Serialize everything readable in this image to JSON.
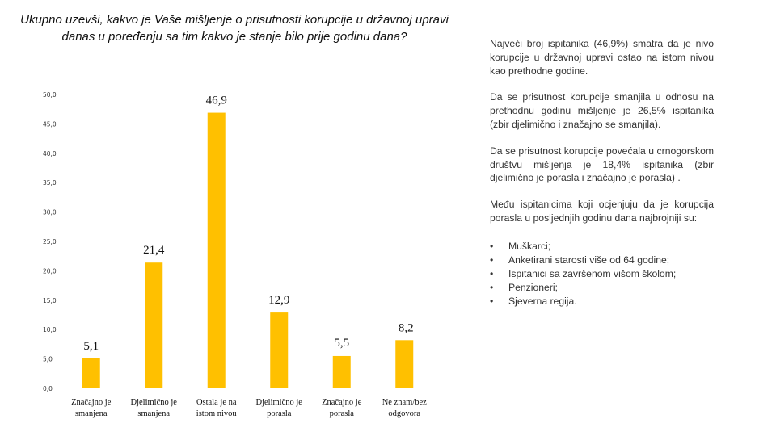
{
  "chart_data": {
    "type": "bar",
    "title": "Ukupno uzevši, kakvo je Vaše mišljenje o prisutnosti korupcije u državnoj upravi danas u poređenju sa tim kakvo je stanje bilo prije godinu dana?",
    "categories": [
      [
        "Značajno je",
        "smanjena"
      ],
      [
        "Djelimično je",
        "smanjena"
      ],
      [
        "Ostala je na",
        "istom nivou"
      ],
      [
        "Djelimično je",
        "porasla"
      ],
      [
        "Značajno je",
        "porasla"
      ],
      [
        "Ne znam/bez",
        "odgovora"
      ]
    ],
    "values": [
      5.1,
      21.4,
      46.9,
      12.9,
      5.5,
      8.2
    ],
    "value_labels": [
      "5,1",
      "21,4",
      "46,9",
      "12,9",
      "5,5",
      "8,2"
    ],
    "ylim": [
      0,
      50
    ],
    "yticks": [
      "0,0",
      "5,0",
      "10,0",
      "15,0",
      "20,0",
      "25,0",
      "30,0",
      "35,0",
      "40,0",
      "45,0",
      "50,0"
    ],
    "bar_color": "#FFC000",
    "xlabel": "",
    "ylabel": "",
    "grid": false
  },
  "panel": {
    "paragraphs": [
      "Najveći broj ispitanika (46,9%) smatra da je nivo korupcije u državnoj upravi ostao na istom nivou kao prethodne godine.",
      "Da se prisutnost korupcije smanjila u odnosu na prethodnu godinu mišljenje je 26,5% ispitanika (zbir djelimično i značajno se smanjila).",
      "Da se prisutnost korupcije povećala u crnogorskom društvu mišljenja je 18,4% ispitanika (zbir djelimično je porasla i značajno je porasla) .",
      "Među ispitanicima koji ocjenjuju da je korupcija porasla u posljednjih godinu dana najbrojniji su:"
    ],
    "bullet_symbol": "•",
    "bullets": [
      "Muškarci;",
      "Anketirani starosti više od 64 godine;",
      "Ispitanici sa završenom višom školom;",
      "Penzioneri;",
      "Sjeverna regija."
    ]
  }
}
